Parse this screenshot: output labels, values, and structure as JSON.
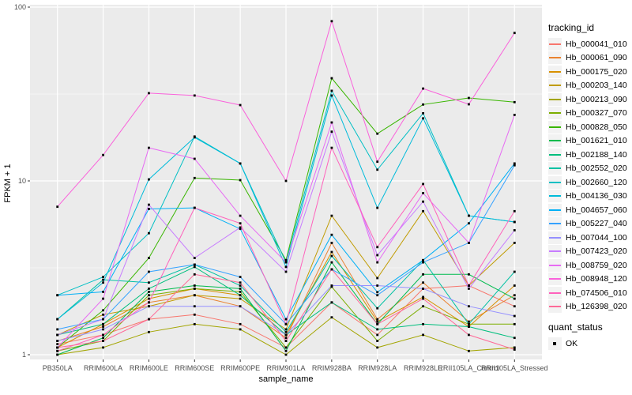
{
  "figure": {
    "panel_background": "#EBEBEB",
    "grid_color": "#FFFFFF",
    "axis_text_color": "#4D4D4D",
    "tick_color": "#333333",
    "point_color": "#000000"
  },
  "chart_data": {
    "type": "line",
    "title": "",
    "xlabel": "sample_name",
    "ylabel": "FPKM + 1",
    "y_scale": "log10",
    "ylim": [
      1,
      100
    ],
    "yticks": [
      1,
      10,
      100
    ],
    "grid": true,
    "legend_position": "right",
    "point_marker": "filled-square",
    "categories": [
      "PB350LA",
      "RRIM600LA",
      "RRIM600LE",
      "RRIM600SE",
      "RRIM600PE",
      "RRIM901LA",
      "RRIM928BA",
      "RRIM928LA",
      "RRIM928LE",
      "RRII105LA_Control",
      "RRII105LA_Stressed"
    ],
    "series": [
      {
        "name": "Hb_000041_010",
        "color": "#F8766D",
        "values": [
          1.15,
          1.3,
          1.6,
          1.7,
          1.5,
          1.1,
          2.0,
          1.3,
          2.4,
          2.5,
          1.9
        ]
      },
      {
        "name": "Hb_000061_090",
        "color": "#EA8331",
        "values": [
          1.2,
          1.45,
          2.0,
          2.2,
          1.9,
          1.25,
          4.4,
          1.6,
          2.6,
          1.55,
          2.2
        ]
      },
      {
        "name": "Hb_000175_020",
        "color": "#D89000",
        "values": [
          1.1,
          1.5,
          2.1,
          2.4,
          2.2,
          1.3,
          3.9,
          1.55,
          2.15,
          1.45,
          2.5
        ]
      },
      {
        "name": "Hb_000203_140",
        "color": "#C09B00",
        "values": [
          1.3,
          1.7,
          1.9,
          2.2,
          2.1,
          1.4,
          6.3,
          2.76,
          6.7,
          2.5,
          4.4
        ]
      },
      {
        "name": "Hb_000213_090",
        "color": "#A3A500",
        "values": [
          1.0,
          1.1,
          1.35,
          1.5,
          1.4,
          1.0,
          1.64,
          1.1,
          1.3,
          1.05,
          1.1
        ]
      },
      {
        "name": "Hb_000327_070",
        "color": "#7CAE00",
        "values": [
          1.05,
          1.2,
          2.2,
          2.4,
          2.3,
          1.1,
          2.46,
          1.2,
          1.9,
          1.5,
          1.5
        ]
      },
      {
        "name": "Hb_000828_050",
        "color": "#39B600",
        "values": [
          1.1,
          1.8,
          3.6,
          10.4,
          10.1,
          3.5,
          39,
          18.7,
          27.5,
          30,
          28.4
        ]
      },
      {
        "name": "Hb_001621_010",
        "color": "#00BB4E",
        "values": [
          1.0,
          1.25,
          2.3,
          2.5,
          2.4,
          1.05,
          3.4,
          1.5,
          2.9,
          2.9,
          2.1
        ]
      },
      {
        "name": "Hb_002188_140",
        "color": "#00BF7D",
        "values": [
          1.3,
          1.5,
          2.4,
          3.2,
          2.2,
          1.3,
          2.0,
          1.4,
          1.5,
          1.45,
          1.25
        ]
      },
      {
        "name": "Hb_002552_020",
        "color": "#00C1A3",
        "values": [
          1.6,
          2.7,
          2.6,
          3.3,
          2.5,
          1.35,
          3.7,
          1.85,
          3.5,
          1.5,
          3.0
        ]
      },
      {
        "name": "Hb_002660_120",
        "color": "#00BFC4",
        "values": [
          2.2,
          2.8,
          5.0,
          18,
          12.6,
          3.4,
          33,
          11.6,
          24.5,
          6.3,
          5.8
        ]
      },
      {
        "name": "Hb_004136_030",
        "color": "#00BBDA",
        "values": [
          1.6,
          2.6,
          10.2,
          17.8,
          12.6,
          3.2,
          31,
          7.0,
          22.9,
          6.3,
          5.8
        ]
      },
      {
        "name": "Hb_004657_060",
        "color": "#00B0F6",
        "values": [
          2.2,
          2.3,
          6.9,
          7.0,
          5.3,
          1.6,
          4.9,
          2.29,
          3.5,
          5.7,
          12.6
        ]
      },
      {
        "name": "Hb_005227_040",
        "color": "#35A2FF",
        "values": [
          1.4,
          1.6,
          3.0,
          3.3,
          2.8,
          1.5,
          3.1,
          2.2,
          3.4,
          4.4,
          12.3
        ]
      },
      {
        "name": "Hb_007044_100",
        "color": "#9590FF",
        "values": [
          1.2,
          1.4,
          1.9,
          1.9,
          1.9,
          1.3,
          2.5,
          2.5,
          2.4,
          1.9,
          1.67
        ]
      },
      {
        "name": "Hb_007423_020",
        "color": "#C77CFF",
        "values": [
          1.3,
          1.6,
          7.3,
          3.6,
          5.4,
          3.0,
          19.2,
          3.74,
          7.6,
          2.4,
          5.2
        ]
      },
      {
        "name": "Hb_008759_020",
        "color": "#E76BF3",
        "values": [
          1.1,
          2.1,
          15.5,
          13.4,
          6.3,
          3.4,
          21.7,
          3.4,
          8.5,
          4.4,
          24
        ]
      },
      {
        "name": "Hb_008948_120",
        "color": "#FA62DB",
        "values": [
          7.1,
          14.1,
          32,
          31,
          27.3,
          10,
          83,
          12.9,
          34,
          27.6,
          71
        ]
      },
      {
        "name": "Hb_074506_010",
        "color": "#FF62BC",
        "values": [
          1.05,
          1.3,
          2.0,
          7.0,
          5.7,
          1.5,
          15.5,
          4.16,
          9.6,
          2.5,
          6.7
        ]
      },
      {
        "name": "Hb_126398_020",
        "color": "#FF6A98",
        "values": [
          1.1,
          1.2,
          1.6,
          2.9,
          2.6,
          1.2,
          3.1,
          1.5,
          2.1,
          1.3,
          1.07
        ]
      }
    ]
  },
  "legend": {
    "tracking_title": "tracking_id",
    "quant_title": "quant_status",
    "quant_items": [
      {
        "label": "OK"
      }
    ]
  }
}
